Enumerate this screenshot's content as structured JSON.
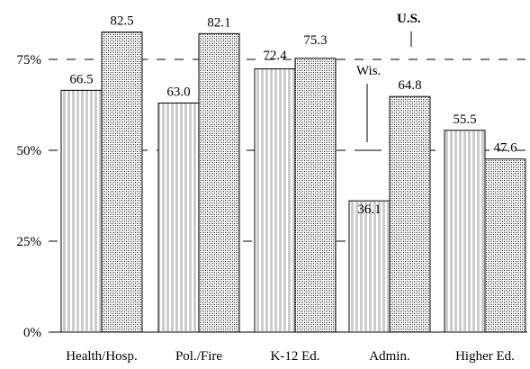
{
  "chart_data": {
    "type": "bar",
    "categories": [
      "Health/Hosp.",
      "Pol./Fire",
      "K-12 Ed.",
      "Admin.",
      "Higher Ed."
    ],
    "series": [
      {
        "name": "Wis.",
        "values": [
          66.5,
          63.0,
          72.4,
          36.1,
          55.5
        ],
        "labels": [
          "66.5",
          "63.0",
          "72.4",
          "36.1",
          "55.5"
        ]
      },
      {
        "name": "U.S.",
        "values": [
          82.5,
          82.1,
          75.3,
          64.8,
          47.6
        ],
        "labels": [
          "82.5",
          "82.1",
          "75.3",
          "64.8",
          "47.6"
        ]
      }
    ],
    "ylim": [
      0,
      100
    ],
    "yticks": [
      {
        "value": 0,
        "label": "0%"
      },
      {
        "value": 25,
        "label": "25%"
      },
      {
        "value": 50,
        "label": "50%"
      },
      {
        "value": 75,
        "label": "75%"
      }
    ],
    "grid": "dashed horizontal at 50% and 75%",
    "legend": "inline labels above Admin. bars",
    "colors": {
      "ink": "#000000",
      "background": "#ffffff"
    }
  }
}
